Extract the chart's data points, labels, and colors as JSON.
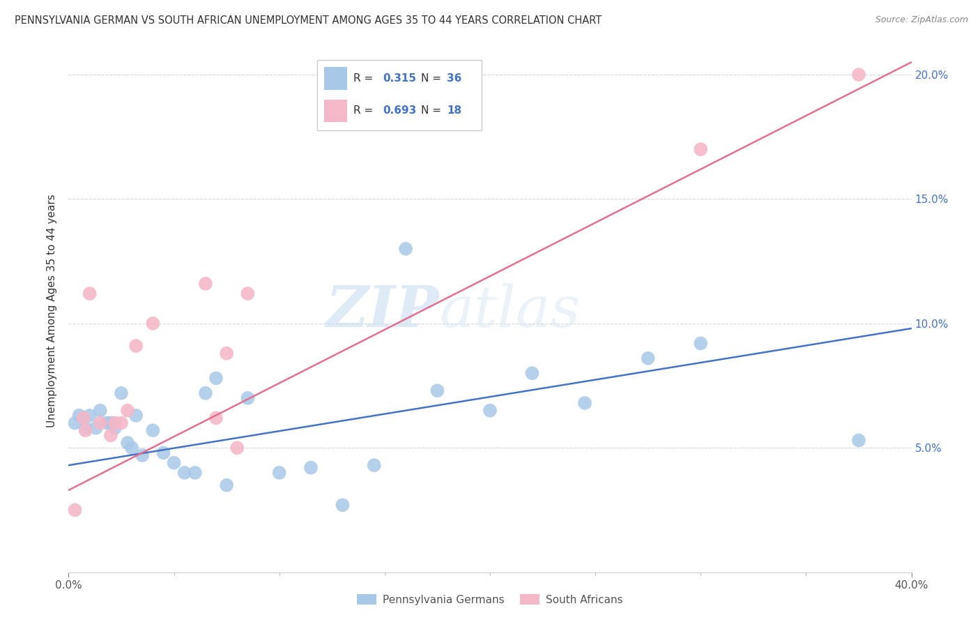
{
  "title": "PENNSYLVANIA GERMAN VS SOUTH AFRICAN UNEMPLOYMENT AMONG AGES 35 TO 44 YEARS CORRELATION CHART",
  "source": "Source: ZipAtlas.com",
  "ylabel": "Unemployment Among Ages 35 to 44 years",
  "xlim": [
    0.0,
    0.4
  ],
  "ylim": [
    0.0,
    0.21
  ],
  "background_color": "#ffffff",
  "grid_color": "#cccccc",
  "watermark_zip": "ZIP",
  "watermark_atlas": "atlas",
  "blue_color": "#a8c8e8",
  "pink_color": "#f4b8c8",
  "blue_line_color": "#4472c4",
  "pink_line_color": "#e07090",
  "legend_blue_r": "0.315",
  "legend_blue_n": "36",
  "legend_pink_r": "0.693",
  "legend_pink_n": "18",
  "legend_text_color": "#333333",
  "legend_value_color_blue": "#4472c4",
  "legend_value_color_pink": "#e07090",
  "bottom_legend_blue": "Pennsylvania Germans",
  "bottom_legend_pink": "South Africans",
  "blue_scatter_x": [
    0.003,
    0.005,
    0.007,
    0.008,
    0.01,
    0.013,
    0.015,
    0.018,
    0.02,
    0.022,
    0.025,
    0.028,
    0.03,
    0.032,
    0.035,
    0.04,
    0.045,
    0.05,
    0.055,
    0.06,
    0.065,
    0.07,
    0.075,
    0.085,
    0.1,
    0.115,
    0.13,
    0.145,
    0.16,
    0.175,
    0.2,
    0.22,
    0.245,
    0.275,
    0.3,
    0.375
  ],
  "blue_scatter_y": [
    0.06,
    0.063,
    0.062,
    0.058,
    0.063,
    0.058,
    0.065,
    0.06,
    0.06,
    0.058,
    0.072,
    0.052,
    0.05,
    0.063,
    0.047,
    0.057,
    0.048,
    0.044,
    0.04,
    0.04,
    0.072,
    0.078,
    0.035,
    0.07,
    0.04,
    0.042,
    0.027,
    0.043,
    0.13,
    0.073,
    0.065,
    0.08,
    0.068,
    0.086,
    0.092,
    0.053
  ],
  "pink_scatter_x": [
    0.003,
    0.007,
    0.008,
    0.01,
    0.015,
    0.02,
    0.022,
    0.025,
    0.028,
    0.032,
    0.04,
    0.065,
    0.07,
    0.075,
    0.08,
    0.085,
    0.3,
    0.375
  ],
  "pink_scatter_y": [
    0.025,
    0.062,
    0.057,
    0.112,
    0.06,
    0.055,
    0.06,
    0.06,
    0.065,
    0.091,
    0.1,
    0.116,
    0.062,
    0.088,
    0.05,
    0.112,
    0.17,
    0.2
  ],
  "blue_line_x": [
    0.0,
    0.4
  ],
  "blue_line_y": [
    0.043,
    0.098
  ],
  "pink_line_x": [
    0.0,
    0.4
  ],
  "pink_line_y": [
    0.033,
    0.205
  ]
}
